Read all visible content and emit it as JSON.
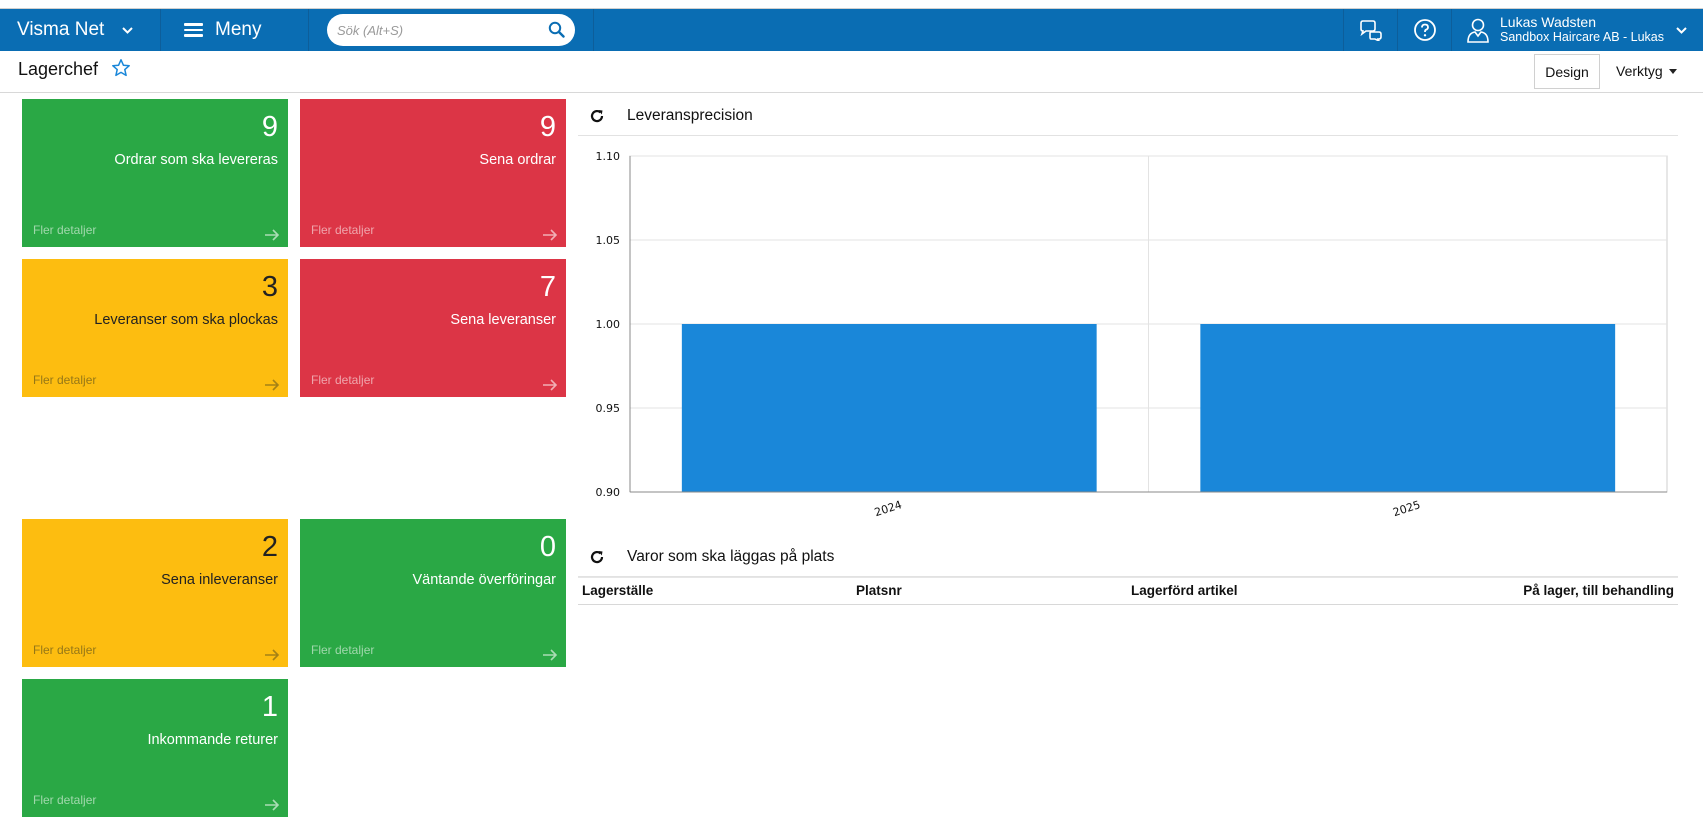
{
  "navbar": {
    "brand": "Visma Net",
    "menu_label": "Meny",
    "search_placeholder": "Sök (Alt+S)",
    "user_name": "Lukas Wadsten",
    "user_company": "Sandbox Haircare AB - Lukas"
  },
  "page": {
    "title": "Lagerchef",
    "design_label": "Design",
    "tools_label": "Verktyg"
  },
  "tiles": [
    {
      "count": "9",
      "label": "Ordrar som ska levereras",
      "more": "Fler detaljer",
      "color": "#2aa845"
    },
    {
      "count": "9",
      "label": "Sena ordrar",
      "more": "Fler detaljer",
      "color": "#dc3546"
    },
    {
      "count": "3",
      "label": "Leveranser som ska plockas",
      "more": "Fler detaljer",
      "color": "#fdbd10"
    },
    {
      "count": "7",
      "label": "Sena leveranser",
      "more": "Fler detaljer",
      "color": "#dc3546"
    },
    {
      "count": "2",
      "label": "Sena inleveranser",
      "more": "Fler detaljer",
      "color": "#fdbd10"
    },
    {
      "count": "0",
      "label": "Väntande överföringar",
      "more": "Fler detaljer",
      "color": "#2aa845"
    },
    {
      "count": "1",
      "label": "Inkommande returer",
      "more": "Fler detaljer",
      "color": "#2aa845"
    }
  ],
  "chart_widget": {
    "title": "Leveransprecision"
  },
  "chart_data": {
    "type": "bar",
    "categories": [
      "2024",
      "2025"
    ],
    "values": [
      1.0,
      1.0
    ],
    "ylim": [
      0.9,
      1.1
    ],
    "yticks": [
      "0.90",
      "0.95",
      "1.00",
      "1.05",
      "1.10"
    ],
    "grid": true,
    "bar_color": "#1a87d9"
  },
  "table_widget": {
    "title": "Varor som ska läggas på plats",
    "columns": [
      "Lagerställe",
      "Platsnr",
      "Lagerförd artikel",
      "På lager, till behandling"
    ]
  },
  "colors": {
    "navbar": "#0a6db3",
    "accent": "#1a87d9"
  }
}
